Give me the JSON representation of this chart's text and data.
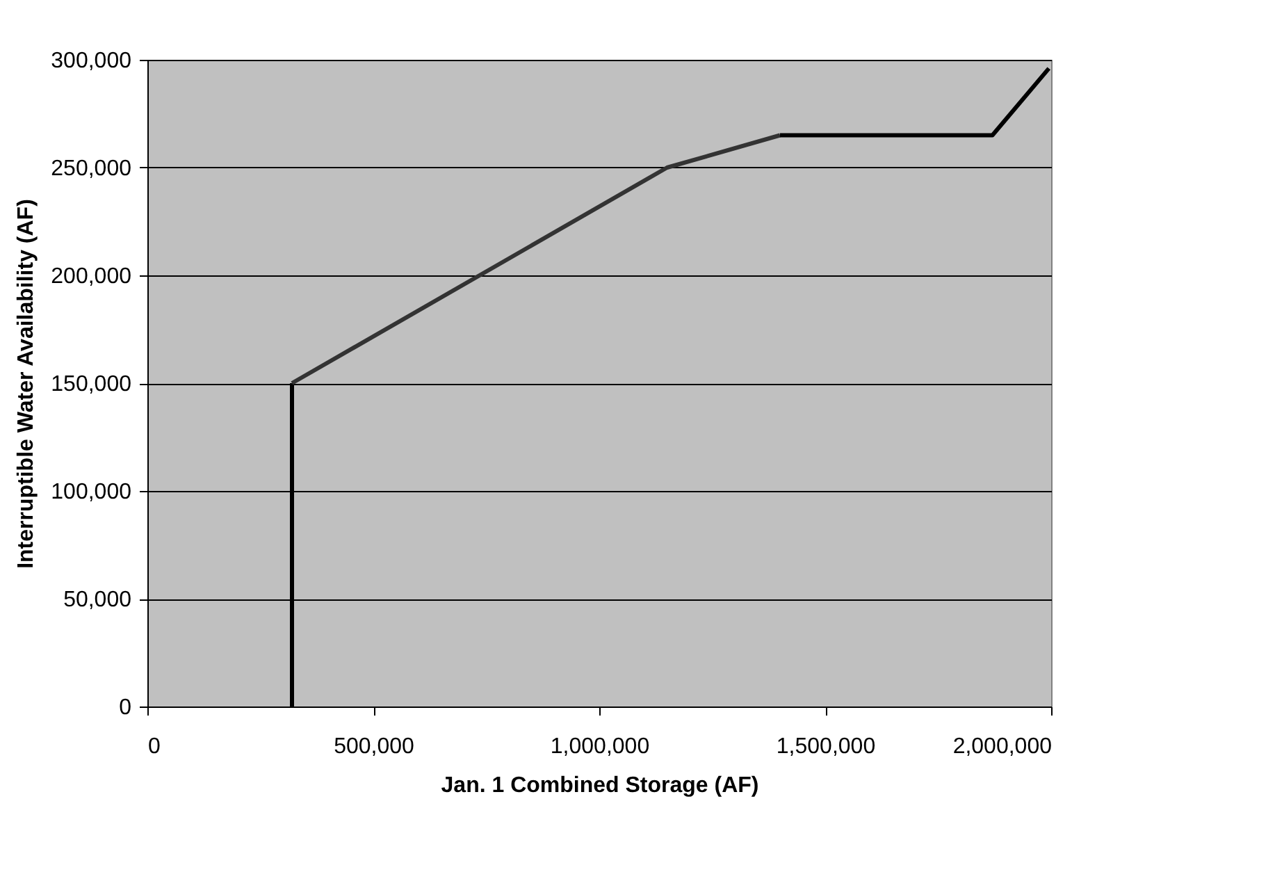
{
  "chart_data": {
    "type": "line",
    "xlabel": "Jan. 1 Combined Storage (AF)",
    "ylabel": "Interruptible Water Availability (AF)",
    "xlim": [
      0,
      2000000
    ],
    "xticks": [
      0,
      {
        "value": 500000,
        "label": "500,000"
      },
      {
        "value": 1000000,
        "label": "1,000,000"
      },
      {
        "value": 1500000,
        "label": "1,500,000"
      },
      {
        "value": 2000000,
        "label": "2,000,000"
      }
    ],
    "ylim": [
      0,
      300000
    ],
    "yticks": [
      0,
      {
        "value": 50000,
        "label": "50,000"
      },
      {
        "value": 100000,
        "label": "100,000"
      },
      {
        "value": 150000,
        "label": "150,000"
      },
      {
        "value": 200000,
        "label": "200,000"
      },
      {
        "value": 250000,
        "label": "250,000"
      },
      {
        "value": 300000,
        "label": "300,000"
      }
    ],
    "grid": "y",
    "legend": false,
    "marker": "none",
    "line_style": "solid",
    "series": [
      {
        "color": "#000000",
        "x": [
          320000,
          320000
        ],
        "values": [
          0,
          150000
        ]
      },
      {
        "color": "#333333",
        "x": [
          320000,
          1150000,
          1400000
        ],
        "values": [
          150000,
          250000,
          265000
        ]
      },
      {
        "color": "#000000",
        "x": [
          1400000,
          1870000,
          1995000
        ],
        "values": [
          265000,
          265000,
          296000
        ]
      }
    ]
  }
}
